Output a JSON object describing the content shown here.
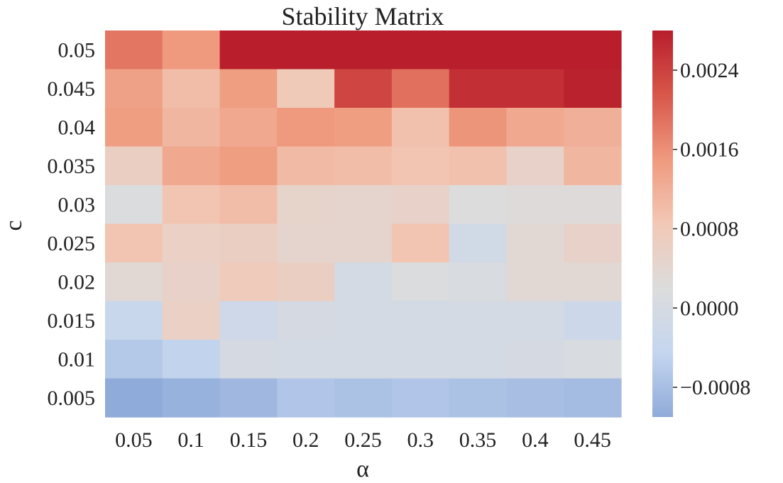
{
  "chart_data": {
    "type": "heatmap",
    "title": "Stability Matrix",
    "xlabel": "α",
    "ylabel": "c",
    "x_categories": [
      "0.05",
      "0.1",
      "0.15",
      "0.2",
      "0.25",
      "0.3",
      "0.35",
      "0.4",
      "0.45"
    ],
    "y_categories": [
      "0.05",
      "0.045",
      "0.04",
      "0.035",
      "0.03",
      "0.025",
      "0.02",
      "0.015",
      "0.01",
      "0.005"
    ],
    "values": [
      [
        0.00185,
        0.0015,
        0.0028,
        0.0028,
        0.0028,
        0.0028,
        0.0028,
        0.0028,
        0.0028
      ],
      [
        0.0014,
        0.001,
        0.00145,
        0.0008,
        0.00235,
        0.0019,
        0.0026,
        0.0026,
        0.00275
      ],
      [
        0.00145,
        0.0011,
        0.0013,
        0.0015,
        0.00145,
        0.00095,
        0.00155,
        0.0013,
        0.0012
      ],
      [
        0.00065,
        0.0013,
        0.00145,
        0.00105,
        0.001,
        0.0009,
        0.00095,
        0.00055,
        0.0011
      ],
      [
        0.00015,
        0.0009,
        0.001,
        0.0005,
        0.00045,
        0.00055,
        0.0002,
        0.00025,
        0.00025
      ],
      [
        0.0009,
        0.0006,
        0.00065,
        0.00045,
        0.00045,
        0.0009,
        -0.00015,
        0.00035,
        0.00055
      ],
      [
        0.00035,
        0.00055,
        0.00075,
        0.00065,
        -5e-05,
        0.00015,
        0.0001,
        0.00035,
        0.00035
      ],
      [
        -0.00035,
        0.0006,
        -0.0002,
        0.0,
        -5e-05,
        -5e-05,
        -5e-05,
        -5e-05,
        -0.00025
      ],
      [
        -0.00065,
        -0.0005,
        0.0,
        -5e-05,
        -5e-05,
        -5e-05,
        -5e-05,
        0.0,
        0.0001
      ],
      [
        -0.0012,
        -0.001,
        -0.0009,
        -0.0007,
        -0.00075,
        -0.0007,
        -0.00075,
        -0.0008,
        -0.00085
      ]
    ],
    "colorbar": {
      "vmin": -0.0011,
      "vmax": 0.0028,
      "ticks": [
        -0.0008,
        0.0,
        0.0008,
        0.0016,
        0.0024
      ],
      "tick_labels": [
        "−0.0008",
        "0.0000",
        "0.0008",
        "0.0016",
        "0.0024"
      ],
      "colormap": "coolwarm",
      "stops": [
        "#8fabd9",
        "#c5d6ef",
        "#dcdcdc",
        "#f2c8b6",
        "#ef9a7e",
        "#d8574a",
        "#b81e2c"
      ]
    }
  }
}
